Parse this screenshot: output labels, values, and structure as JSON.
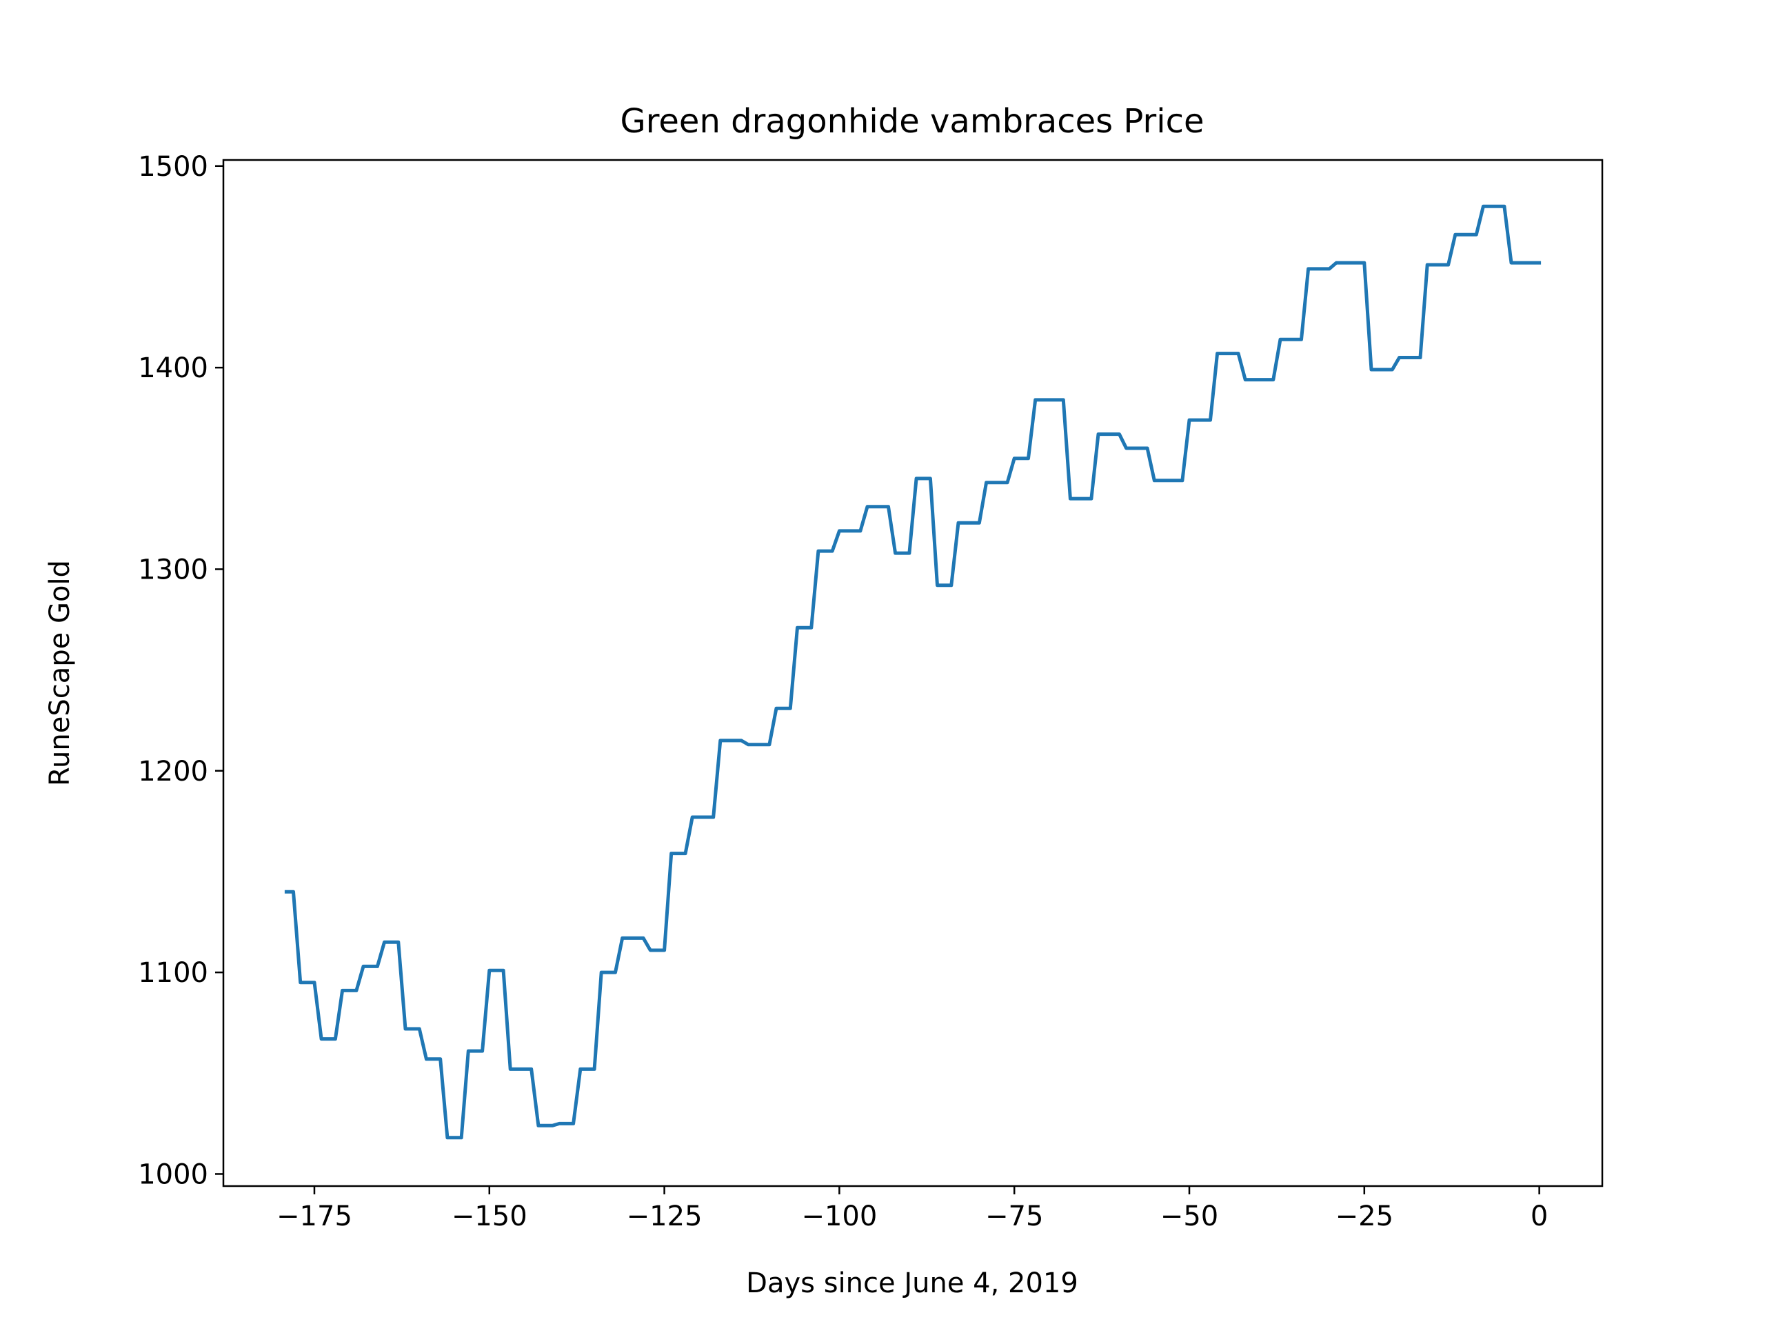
{
  "chart_data": {
    "type": "line",
    "title": "Green dragonhide vambraces Price",
    "xlabel": "Days since June 4, 2019",
    "ylabel": "RuneScape Gold",
    "xlim": [
      -188,
      9
    ],
    "ylim": [
      994,
      1503
    ],
    "xticks": [
      -175,
      -150,
      -125,
      -100,
      -75,
      -50,
      -25,
      0
    ],
    "xtick_labels": [
      "−175",
      "−150",
      "−125",
      "−100",
      "−75",
      "−50",
      "−25",
      "0"
    ],
    "yticks": [
      1000,
      1100,
      1200,
      1300,
      1400,
      1500
    ],
    "ytick_labels": [
      "1000",
      "1100",
      "1200",
      "1300",
      "1400",
      "1500"
    ],
    "grid": false,
    "line_color": "#1f77b4",
    "series": [
      {
        "x": [
          -179,
          -178,
          -177,
          -176,
          -175,
          -174,
          -173,
          -172,
          -171,
          -170,
          -169,
          -168,
          -167,
          -166,
          -165,
          -164,
          -163,
          -162,
          -161,
          -160,
          -159,
          -158,
          -157,
          -156,
          -155,
          -154,
          -153,
          -152,
          -151,
          -150,
          -149,
          -148,
          -147,
          -146,
          -145,
          -144,
          -143,
          -142,
          -141,
          -140,
          -139,
          -138,
          -137,
          -136,
          -135,
          -134,
          -133,
          -132,
          -131,
          -130,
          -129,
          -128,
          -127,
          -126,
          -125,
          -124,
          -123,
          -122,
          -121,
          -120,
          -119,
          -118,
          -117,
          -116,
          -115,
          -114,
          -113,
          -112,
          -111,
          -110,
          -109,
          -108,
          -107,
          -106,
          -105,
          -104,
          -103,
          -102,
          -101,
          -100,
          -99,
          -98,
          -97,
          -96,
          -95,
          -94,
          -93,
          -92,
          -91,
          -90,
          -89,
          -88,
          -87,
          -86,
          -85,
          -84,
          -83,
          -82,
          -81,
          -80,
          -79,
          -78,
          -77,
          -76,
          -75,
          -74,
          -73,
          -72,
          -71,
          -70,
          -69,
          -68,
          -67,
          -66,
          -65,
          -64,
          -63,
          -62,
          -61,
          -60,
          -59,
          -58,
          -57,
          -56,
          -55,
          -54,
          -53,
          -52,
          -51,
          -50,
          -49,
          -48,
          -47,
          -46,
          -45,
          -44,
          -43,
          -42,
          -41,
          -40,
          -39,
          -38,
          -37,
          -36,
          -35,
          -34,
          -33,
          -32,
          -31,
          -30,
          -29,
          -28,
          -27,
          -26,
          -25,
          -24,
          -23,
          -22,
          -21,
          -20,
          -19,
          -18,
          -17,
          -16,
          -15,
          -14,
          -13,
          -12,
          -11,
          -10,
          -9,
          -8,
          -7,
          -6,
          -5,
          -4,
          -3,
          -2,
          -1,
          0
        ],
        "y": [
          1140,
          1140,
          1095,
          1095,
          1095,
          1067,
          1067,
          1067,
          1091,
          1091,
          1091,
          1103,
          1103,
          1103,
          1115,
          1115,
          1115,
          1072,
          1072,
          1072,
          1057,
          1057,
          1057,
          1018,
          1018,
          1018,
          1061,
          1061,
          1061,
          1101,
          1101,
          1101,
          1052,
          1052,
          1052,
          1052,
          1024,
          1024,
          1024,
          1025,
          1025,
          1025,
          1052,
          1052,
          1052,
          1100,
          1100,
          1100,
          1117,
          1117,
          1117,
          1117,
          1111,
          1111,
          1111,
          1159,
          1159,
          1159,
          1177,
          1177,
          1177,
          1177,
          1215,
          1215,
          1215,
          1215,
          1213,
          1213,
          1213,
          1213,
          1231,
          1231,
          1231,
          1271,
          1271,
          1271,
          1309,
          1309,
          1309,
          1319,
          1319,
          1319,
          1319,
          1331,
          1331,
          1331,
          1331,
          1308,
          1308,
          1308,
          1345,
          1345,
          1345,
          1292,
          1292,
          1292,
          1323,
          1323,
          1323,
          1323,
          1343,
          1343,
          1343,
          1343,
          1355,
          1355,
          1355,
          1384,
          1384,
          1384,
          1384,
          1384,
          1335,
          1335,
          1335,
          1335,
          1367,
          1367,
          1367,
          1367,
          1360,
          1360,
          1360,
          1360,
          1344,
          1344,
          1344,
          1344,
          1344,
          1374,
          1374,
          1374,
          1374,
          1407,
          1407,
          1407,
          1407,
          1394,
          1394,
          1394,
          1394,
          1394,
          1414,
          1414,
          1414,
          1414,
          1449,
          1449,
          1449,
          1449,
          1452,
          1452,
          1452,
          1452,
          1452,
          1399,
          1399,
          1399,
          1399,
          1405,
          1405,
          1405,
          1405,
          1451,
          1451,
          1451,
          1451,
          1466,
          1466,
          1466,
          1466,
          1480,
          1480,
          1480,
          1480,
          1452,
          1452,
          1452,
          1452,
          1452
        ]
      }
    ]
  }
}
